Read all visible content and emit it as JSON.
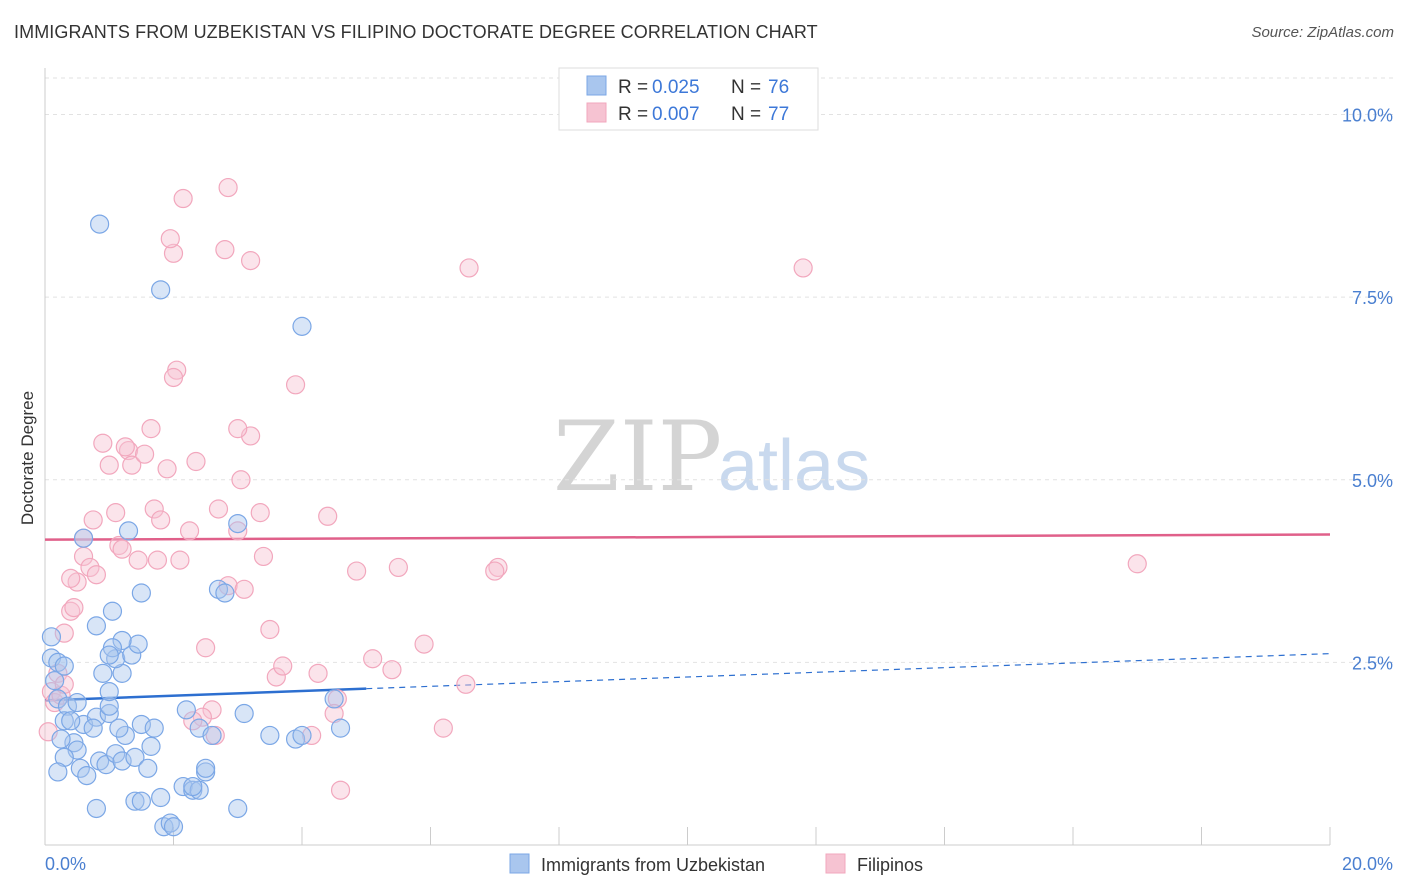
{
  "header": {
    "title": "IMMIGRANTS FROM UZBEKISTAN VS FILIPINO DOCTORATE DEGREE CORRELATION CHART",
    "source": "Source: ZipAtlas.com"
  },
  "watermark": {
    "zip": "ZIP",
    "atlas": "atlas"
  },
  "legend": {
    "rows": [
      {
        "r_label": "R = ",
        "r_value": "0.025",
        "n_label": "N = ",
        "n_value": "76"
      },
      {
        "r_label": "R = ",
        "r_value": "0.007",
        "n_label": "N = ",
        "n_value": "77"
      }
    ]
  },
  "chart_data": {
    "type": "scatter",
    "ylabel": "Doctorate Degree",
    "xlim": [
      0,
      20
    ],
    "ylim": [
      0,
      10.5
    ],
    "x_tick_labels": [
      "0.0%",
      "20.0%"
    ],
    "y_ticks": [
      2.5,
      5.0,
      7.5,
      10.0
    ],
    "y_tick_labels": [
      "2.5%",
      "5.0%",
      "7.5%",
      "10.0%"
    ],
    "grid": true,
    "legend_position": "top-center",
    "series": [
      {
        "name": "Immigrants from Uzbekistan",
        "color": "#7ba7e6",
        "line_color": "#2d6fd0",
        "trend": {
          "x0": 0,
          "y0": 1.98,
          "x1": 5.0,
          "y1": 2.14,
          "dash_to_x": 20,
          "dash_to_y": 2.62
        },
        "points": [
          [
            0.1,
            2.56
          ],
          [
            0.2,
            2.5
          ],
          [
            0.15,
            2.25
          ],
          [
            0.3,
            2.45
          ],
          [
            0.1,
            2.85
          ],
          [
            0.2,
            2.0
          ],
          [
            0.35,
            1.9
          ],
          [
            0.5,
            1.95
          ],
          [
            0.3,
            1.7
          ],
          [
            0.6,
            1.65
          ],
          [
            0.45,
            1.4
          ],
          [
            0.25,
            1.45
          ],
          [
            0.5,
            1.3
          ],
          [
            0.8,
            1.75
          ],
          [
            0.75,
            1.6
          ],
          [
            1.0,
            1.8
          ],
          [
            0.55,
            1.05
          ],
          [
            0.65,
            0.95
          ],
          [
            0.85,
            1.15
          ],
          [
            0.95,
            1.1
          ],
          [
            1.1,
            1.25
          ],
          [
            1.2,
            1.15
          ],
          [
            1.25,
            1.5
          ],
          [
            1.15,
            1.6
          ],
          [
            1.0,
            1.9
          ],
          [
            1.0,
            2.1
          ],
          [
            1.2,
            2.35
          ],
          [
            1.1,
            2.55
          ],
          [
            1.35,
            2.6
          ],
          [
            1.45,
            2.75
          ],
          [
            1.2,
            2.8
          ],
          [
            1.05,
            2.7
          ],
          [
            0.8,
            3.0
          ],
          [
            1.05,
            3.2
          ],
          [
            1.5,
            3.45
          ],
          [
            0.6,
            4.2
          ],
          [
            0.85,
            8.5
          ],
          [
            1.8,
            7.6
          ],
          [
            1.4,
            0.6
          ],
          [
            1.5,
            0.6
          ],
          [
            1.4,
            1.2
          ],
          [
            1.6,
            1.05
          ],
          [
            1.65,
            1.35
          ],
          [
            1.5,
            1.65
          ],
          [
            1.7,
            1.6
          ],
          [
            1.8,
            0.65
          ],
          [
            1.85,
            0.25
          ],
          [
            1.95,
            0.3
          ],
          [
            2.0,
            0.25
          ],
          [
            2.15,
            0.8
          ],
          [
            2.3,
            0.75
          ],
          [
            2.4,
            0.75
          ],
          [
            2.5,
            1.0
          ],
          [
            2.5,
            1.05
          ],
          [
            2.2,
            1.85
          ],
          [
            2.4,
            1.6
          ],
          [
            2.6,
            1.5
          ],
          [
            3.0,
            0.5
          ],
          [
            3.1,
            1.8
          ],
          [
            2.7,
            3.5
          ],
          [
            2.8,
            3.45
          ],
          [
            3.0,
            4.4
          ],
          [
            3.5,
            1.5
          ],
          [
            3.9,
            1.45
          ],
          [
            4.0,
            1.5
          ],
          [
            4.0,
            7.1
          ],
          [
            4.5,
            2.0
          ],
          [
            4.6,
            1.6
          ],
          [
            0.3,
            1.2
          ],
          [
            0.8,
            0.5
          ],
          [
            0.2,
            1.0
          ],
          [
            0.9,
            2.35
          ],
          [
            1.3,
            4.3
          ],
          [
            0.4,
            1.7
          ],
          [
            2.3,
            0.8
          ],
          [
            1.0,
            2.6
          ]
        ]
      },
      {
        "name": "Filipinos",
        "color": "#f2a7bd",
        "line_color": "#e0608a",
        "trend": {
          "x0": 0,
          "y0": 4.18,
          "x1": 20,
          "y1": 4.25
        },
        "points": [
          [
            0.05,
            1.55
          ],
          [
            0.1,
            2.1
          ],
          [
            0.15,
            1.95
          ],
          [
            0.25,
            2.05
          ],
          [
            0.2,
            2.35
          ],
          [
            0.3,
            2.2
          ],
          [
            0.3,
            2.9
          ],
          [
            0.4,
            3.2
          ],
          [
            0.45,
            3.25
          ],
          [
            0.5,
            3.6
          ],
          [
            0.4,
            3.65
          ],
          [
            0.6,
            3.95
          ],
          [
            0.7,
            3.8
          ],
          [
            0.8,
            3.7
          ],
          [
            0.75,
            4.45
          ],
          [
            0.6,
            4.2
          ],
          [
            0.9,
            5.5
          ],
          [
            1.0,
            5.2
          ],
          [
            1.1,
            4.55
          ],
          [
            1.15,
            4.1
          ],
          [
            1.2,
            4.05
          ],
          [
            1.3,
            5.4
          ],
          [
            1.35,
            5.2
          ],
          [
            1.25,
            5.45
          ],
          [
            1.45,
            3.9
          ],
          [
            1.55,
            5.35
          ],
          [
            1.65,
            5.7
          ],
          [
            1.7,
            4.6
          ],
          [
            1.75,
            3.9
          ],
          [
            1.8,
            4.45
          ],
          [
            1.9,
            5.15
          ],
          [
            2.0,
            8.1
          ],
          [
            1.95,
            8.3
          ],
          [
            2.1,
            3.9
          ],
          [
            2.25,
            4.3
          ],
          [
            2.35,
            5.25
          ],
          [
            2.5,
            2.7
          ],
          [
            2.6,
            1.85
          ],
          [
            2.45,
            1.75
          ],
          [
            2.3,
            1.7
          ],
          [
            2.65,
            1.5
          ],
          [
            2.7,
            4.6
          ],
          [
            2.85,
            3.55
          ],
          [
            3.0,
            4.3
          ],
          [
            3.05,
            5.0
          ],
          [
            3.1,
            3.5
          ],
          [
            3.2,
            5.6
          ],
          [
            3.35,
            4.55
          ],
          [
            3.4,
            3.95
          ],
          [
            3.5,
            2.95
          ],
          [
            3.6,
            2.3
          ],
          [
            3.7,
            2.45
          ],
          [
            3.0,
            5.7
          ],
          [
            2.85,
            9.0
          ],
          [
            2.8,
            8.15
          ],
          [
            3.2,
            8.0
          ],
          [
            2.15,
            8.85
          ],
          [
            2.05,
            6.5
          ],
          [
            2.0,
            6.4
          ],
          [
            3.9,
            6.3
          ],
          [
            4.4,
            4.5
          ],
          [
            4.55,
            2.0
          ],
          [
            4.5,
            1.8
          ],
          [
            4.6,
            0.75
          ],
          [
            4.15,
            1.5
          ],
          [
            4.25,
            2.35
          ],
          [
            4.85,
            3.75
          ],
          [
            5.1,
            2.55
          ],
          [
            5.4,
            2.4
          ],
          [
            5.5,
            3.8
          ],
          [
            5.9,
            2.75
          ],
          [
            6.2,
            1.6
          ],
          [
            6.55,
            2.2
          ],
          [
            6.6,
            7.9
          ],
          [
            7.05,
            3.8
          ],
          [
            7.0,
            3.75
          ],
          [
            11.8,
            7.9
          ]
        ],
        "extra_points": [
          [
            17.0,
            3.85
          ]
        ]
      }
    ]
  },
  "bottom_legend": {
    "items": [
      {
        "label": "Immigrants from Uzbekistan"
      },
      {
        "label": "Filipinos"
      }
    ]
  },
  "colors": {
    "blue_fill": "#a9c6ee",
    "blue_stroke": "#7ba7e6",
    "pink_fill": "#f6c3d2",
    "pink_stroke": "#f2a7bd",
    "grid": "#e2e2e2",
    "axis_label": "#4a7fd0"
  }
}
